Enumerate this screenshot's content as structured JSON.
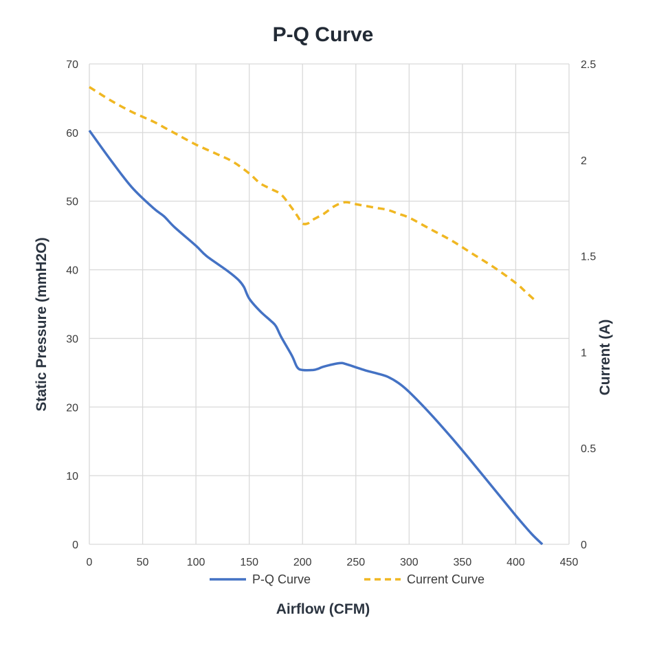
{
  "chart_data": {
    "type": "line",
    "title": "P-Q Curve",
    "xlabel": "Airflow (CFM)",
    "ylabel": "Static Pressure (mmH2O)",
    "y2label": "Current (A)",
    "xlim": [
      0,
      450
    ],
    "ylim": [
      0,
      70
    ],
    "y2lim": [
      0,
      2.5
    ],
    "xticks": [
      "0",
      "50",
      "100",
      "150",
      "200",
      "250",
      "300",
      "350",
      "400",
      "450"
    ],
    "yticks": [
      "0",
      "10",
      "20",
      "30",
      "40",
      "50",
      "60",
      "70"
    ],
    "y2ticks": [
      "0",
      "0.5",
      "1",
      "1.5",
      "2",
      "2.5"
    ],
    "grid": true,
    "legend_position": "bottom",
    "series": [
      {
        "name": "P-Q Curve",
        "axis": "left",
        "color": "#4472c4",
        "dash": "solid",
        "x": [
          0,
          20,
          40,
          60,
          70,
          80,
          100,
          110,
          130,
          140,
          145,
          150,
          160,
          170,
          175,
          180,
          190,
          195,
          200,
          210,
          215,
          220,
          235,
          240,
          250,
          260,
          270,
          280,
          290,
          300,
          320,
          340,
          360,
          380,
          400,
          415,
          425
        ],
        "y": [
          60.3,
          56.0,
          52.0,
          49.0,
          47.8,
          46.2,
          43.5,
          42.0,
          39.8,
          38.5,
          37.5,
          35.8,
          34.0,
          32.6,
          31.8,
          30.2,
          27.5,
          25.8,
          25.4,
          25.4,
          25.6,
          25.9,
          26.4,
          26.3,
          25.8,
          25.3,
          24.9,
          24.4,
          23.5,
          22.2,
          19.0,
          15.5,
          11.8,
          8.0,
          4.2,
          1.5,
          0
        ]
      },
      {
        "name": "Current Curve",
        "axis": "right",
        "color": "#f0b722",
        "dash": "dashed",
        "x": [
          0,
          20,
          40,
          60,
          70,
          80,
          100,
          120,
          135,
          150,
          160,
          170,
          180,
          190,
          195,
          200,
          205,
          210,
          220,
          230,
          240,
          250,
          260,
          270,
          280,
          290,
          300,
          320,
          340,
          360,
          380,
          400,
          410,
          420
        ],
        "y": [
          2.38,
          2.31,
          2.25,
          2.2,
          2.17,
          2.14,
          2.08,
          2.03,
          1.99,
          1.93,
          1.88,
          1.85,
          1.82,
          1.75,
          1.71,
          1.67,
          1.67,
          1.69,
          1.72,
          1.76,
          1.78,
          1.77,
          1.76,
          1.75,
          1.74,
          1.72,
          1.7,
          1.64,
          1.58,
          1.51,
          1.44,
          1.36,
          1.31,
          1.26
        ]
      }
    ]
  }
}
